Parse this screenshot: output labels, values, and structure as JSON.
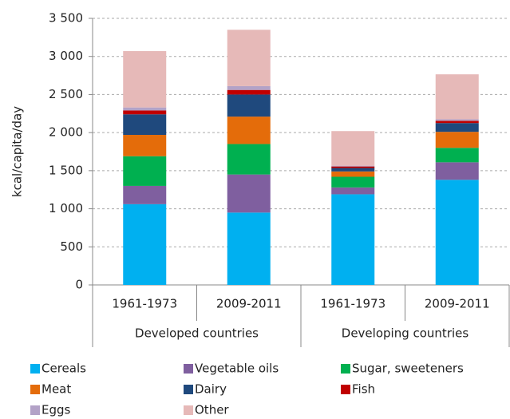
{
  "chart_data": {
    "type": "stacked_bar",
    "y_label": "kcal/capita/day",
    "categories": [
      "1961-1973",
      "2009-2011",
      "1961-1973",
      "2009-2011"
    ],
    "groups": [
      "Developed countries",
      "Developing countries"
    ],
    "series": [
      {
        "name": "Cereals",
        "color": "#00b0f0",
        "values": [
          1060,
          950,
          1190,
          1380
        ]
      },
      {
        "name": "Vegetable oils",
        "color": "#7f5f9f",
        "values": [
          240,
          500,
          90,
          230
        ]
      },
      {
        "name": "Sugar, sweeteners",
        "color": "#00b050",
        "values": [
          390,
          400,
          140,
          190
        ]
      },
      {
        "name": "Meat",
        "color": "#e46c0a",
        "values": [
          280,
          360,
          70,
          210
        ]
      },
      {
        "name": "Dairy",
        "color": "#1f497d",
        "values": [
          270,
          290,
          45,
          115
        ]
      },
      {
        "name": "Fish",
        "color": "#c00000",
        "values": [
          50,
          60,
          20,
          30
        ]
      },
      {
        "name": "Eggs",
        "color": "#b3a2c7",
        "values": [
          40,
          50,
          10,
          20
        ]
      },
      {
        "name": "Other",
        "color": "#e6b9b8",
        "values": [
          740,
          740,
          455,
          590
        ]
      }
    ],
    "ylim": [
      0,
      3500
    ],
    "yticks": [
      0,
      500,
      {
        "value": 1000,
        "label": "1 000"
      },
      {
        "value": 1500,
        "label": "1 500"
      },
      {
        "value": 2000,
        "label": "2 000"
      },
      {
        "value": 2500,
        "label": "2 500"
      },
      {
        "value": 3000,
        "label": "3 000"
      },
      {
        "value": 3500,
        "label": "3 500"
      }
    ],
    "grid": true
  }
}
